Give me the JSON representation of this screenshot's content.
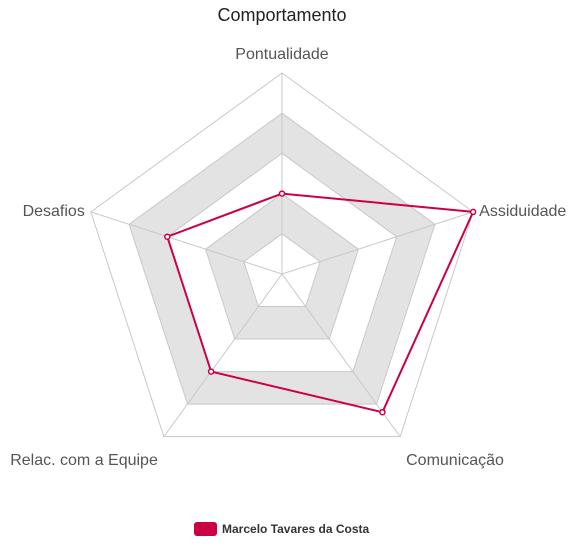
{
  "chart_data": {
    "type": "radar",
    "title": "Comportamento",
    "axes": [
      "Pontualidade",
      "Assiduidade",
      "Comunicação",
      "Relac. com a Equipe",
      "Desafios"
    ],
    "rlim": [
      0,
      10
    ],
    "ring_count": 5,
    "series": [
      {
        "name": "Marcelo Tavares da Costa",
        "values": [
          4,
          10,
          8.5,
          6,
          6
        ],
        "color": "#cc0044"
      }
    ],
    "legend_position": "bottom",
    "colors": {
      "band": "#e3e3e3",
      "gridline": "#c8c8c8",
      "background": "#ffffff"
    }
  }
}
